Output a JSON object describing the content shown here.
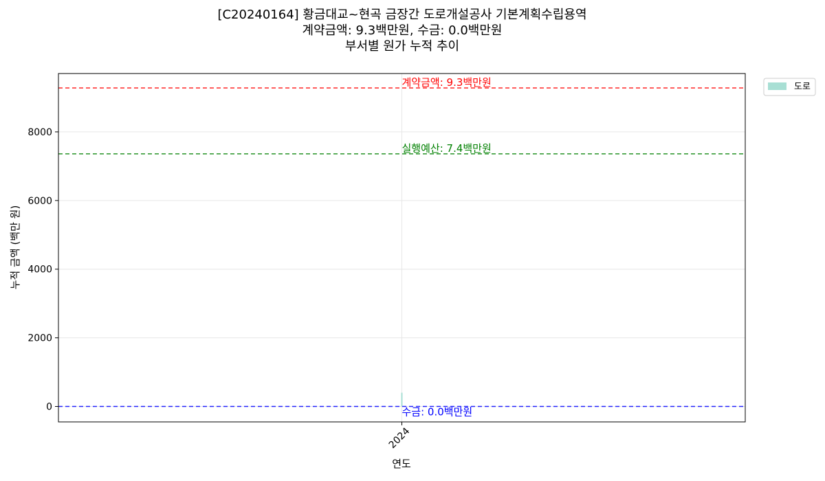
{
  "chart_data": {
    "type": "area",
    "title": "[C20240164] 황금대교~현곡 금장간 도로개설공사 기본계획수립용역",
    "subtitle_1": "계약금액: 9.3백만원, 수금: 0.0백만원",
    "subtitle_2": "부서별 원가 누적 추이",
    "xlabel": "연도",
    "ylabel": "누적 금액 (백만 원)",
    "categories": [
      "2024"
    ],
    "series": [
      {
        "name": "도로",
        "values": [
          400
        ],
        "color": "#a8dfd4"
      }
    ],
    "ylim": [
      -450,
      9700
    ],
    "yticks": [
      0,
      2000,
      4000,
      6000,
      8000
    ],
    "grid": true,
    "legend_position": "outside-top-right",
    "reference_lines": [
      {
        "label": "계약금액: 9.3백만원",
        "value": 9280,
        "color": "#ff0000",
        "label_pos": "above"
      },
      {
        "label": "실행예산: 7.4백만원",
        "value": 7360,
        "color": "#008000",
        "label_pos": "above"
      },
      {
        "label": "수금: 0.0백만원",
        "value": 0,
        "color": "#0000ff",
        "label_pos": "below"
      }
    ]
  }
}
